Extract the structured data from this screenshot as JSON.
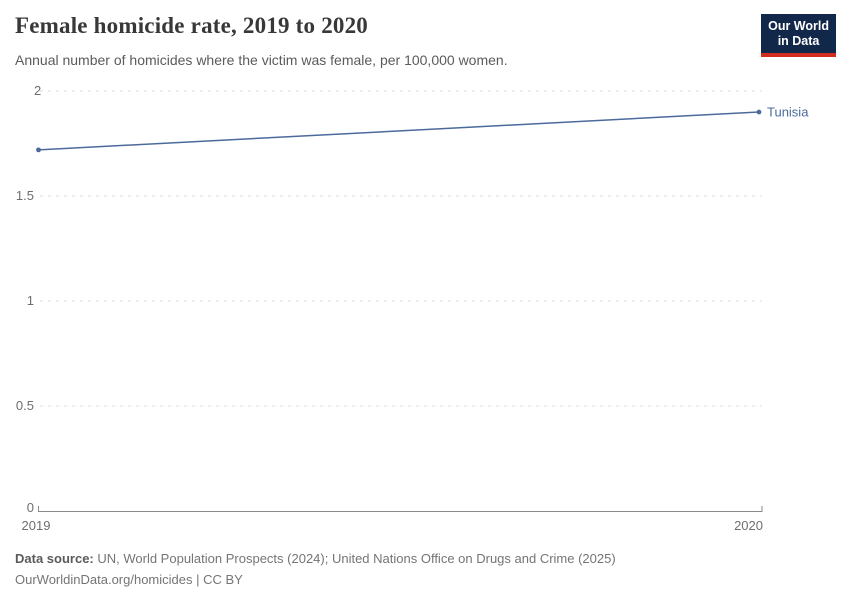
{
  "header": {
    "title": "Female homicide rate, 2019 to 2020",
    "subtitle": "Annual number of homicides where the victim was female, per 100,000 women.",
    "logo": {
      "line1": "Our World",
      "line2": "in Data"
    }
  },
  "chart_data": {
    "type": "line",
    "title": "Female homicide rate, 2019 to 2020",
    "x": [
      2019,
      2020
    ],
    "series": [
      {
        "name": "Tunisia",
        "values": [
          1.72,
          1.9
        ],
        "color": "#4C6A9C"
      }
    ],
    "xlabel": "",
    "ylabel": "",
    "ylim": [
      0,
      2
    ],
    "yticks": [
      0,
      0.5,
      1,
      1.5,
      2
    ],
    "grid": "horizontal-dashed",
    "legend": "end-of-line-label"
  },
  "axes": {
    "yticks": {
      "t2": "2",
      "t15": "1.5",
      "t1": "1",
      "t05": "0.5",
      "t0": "0"
    },
    "xticks": {
      "left": "2019",
      "right": "2020"
    }
  },
  "series_label": "Tunisia",
  "footer": {
    "source_label": "Data source:",
    "source_text": " UN, World Population Prospects (2024); United Nations Office on Drugs and Crime (2025)",
    "link_line": "OurWorldinData.org/homicides | CC BY"
  },
  "colors": {
    "line": "#4C6A9C",
    "logo_bg": "#12284a",
    "logo_red": "#d42b21",
    "grid": "#dcdcdc",
    "axis": "#8a8a8a"
  }
}
